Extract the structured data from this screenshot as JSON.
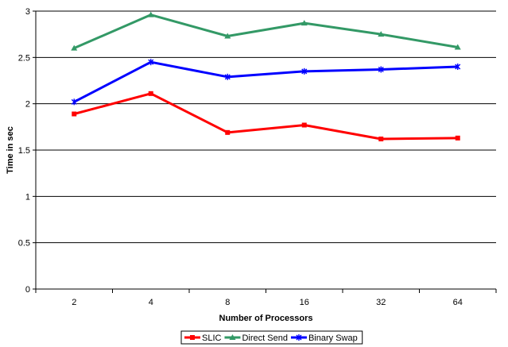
{
  "chart_data": {
    "type": "line",
    "categories": [
      "2",
      "4",
      "8",
      "16",
      "32",
      "64"
    ],
    "series": [
      {
        "name": "SLIC",
        "values": [
          1.89,
          2.11,
          1.69,
          1.77,
          1.62,
          1.63
        ],
        "color": "#ff0000",
        "marker": "square"
      },
      {
        "name": "Direct Send",
        "values": [
          2.6,
          2.96,
          2.73,
          2.87,
          2.75,
          2.61
        ],
        "color": "#339966",
        "marker": "triangle"
      },
      {
        "name": "Binary Swap",
        "values": [
          2.02,
          2.45,
          2.29,
          2.35,
          2.37,
          2.4
        ],
        "color": "#0000ff",
        "marker": "asterisk"
      }
    ],
    "title": "",
    "xlabel": "Number of Processors",
    "ylabel": "Time in sec",
    "ylim": [
      0,
      3
    ],
    "yticks": [
      "0",
      "0.5",
      "1",
      "1.5",
      "2",
      "2.5",
      "3"
    ],
    "grid": true,
    "legend_position": "bottom"
  }
}
